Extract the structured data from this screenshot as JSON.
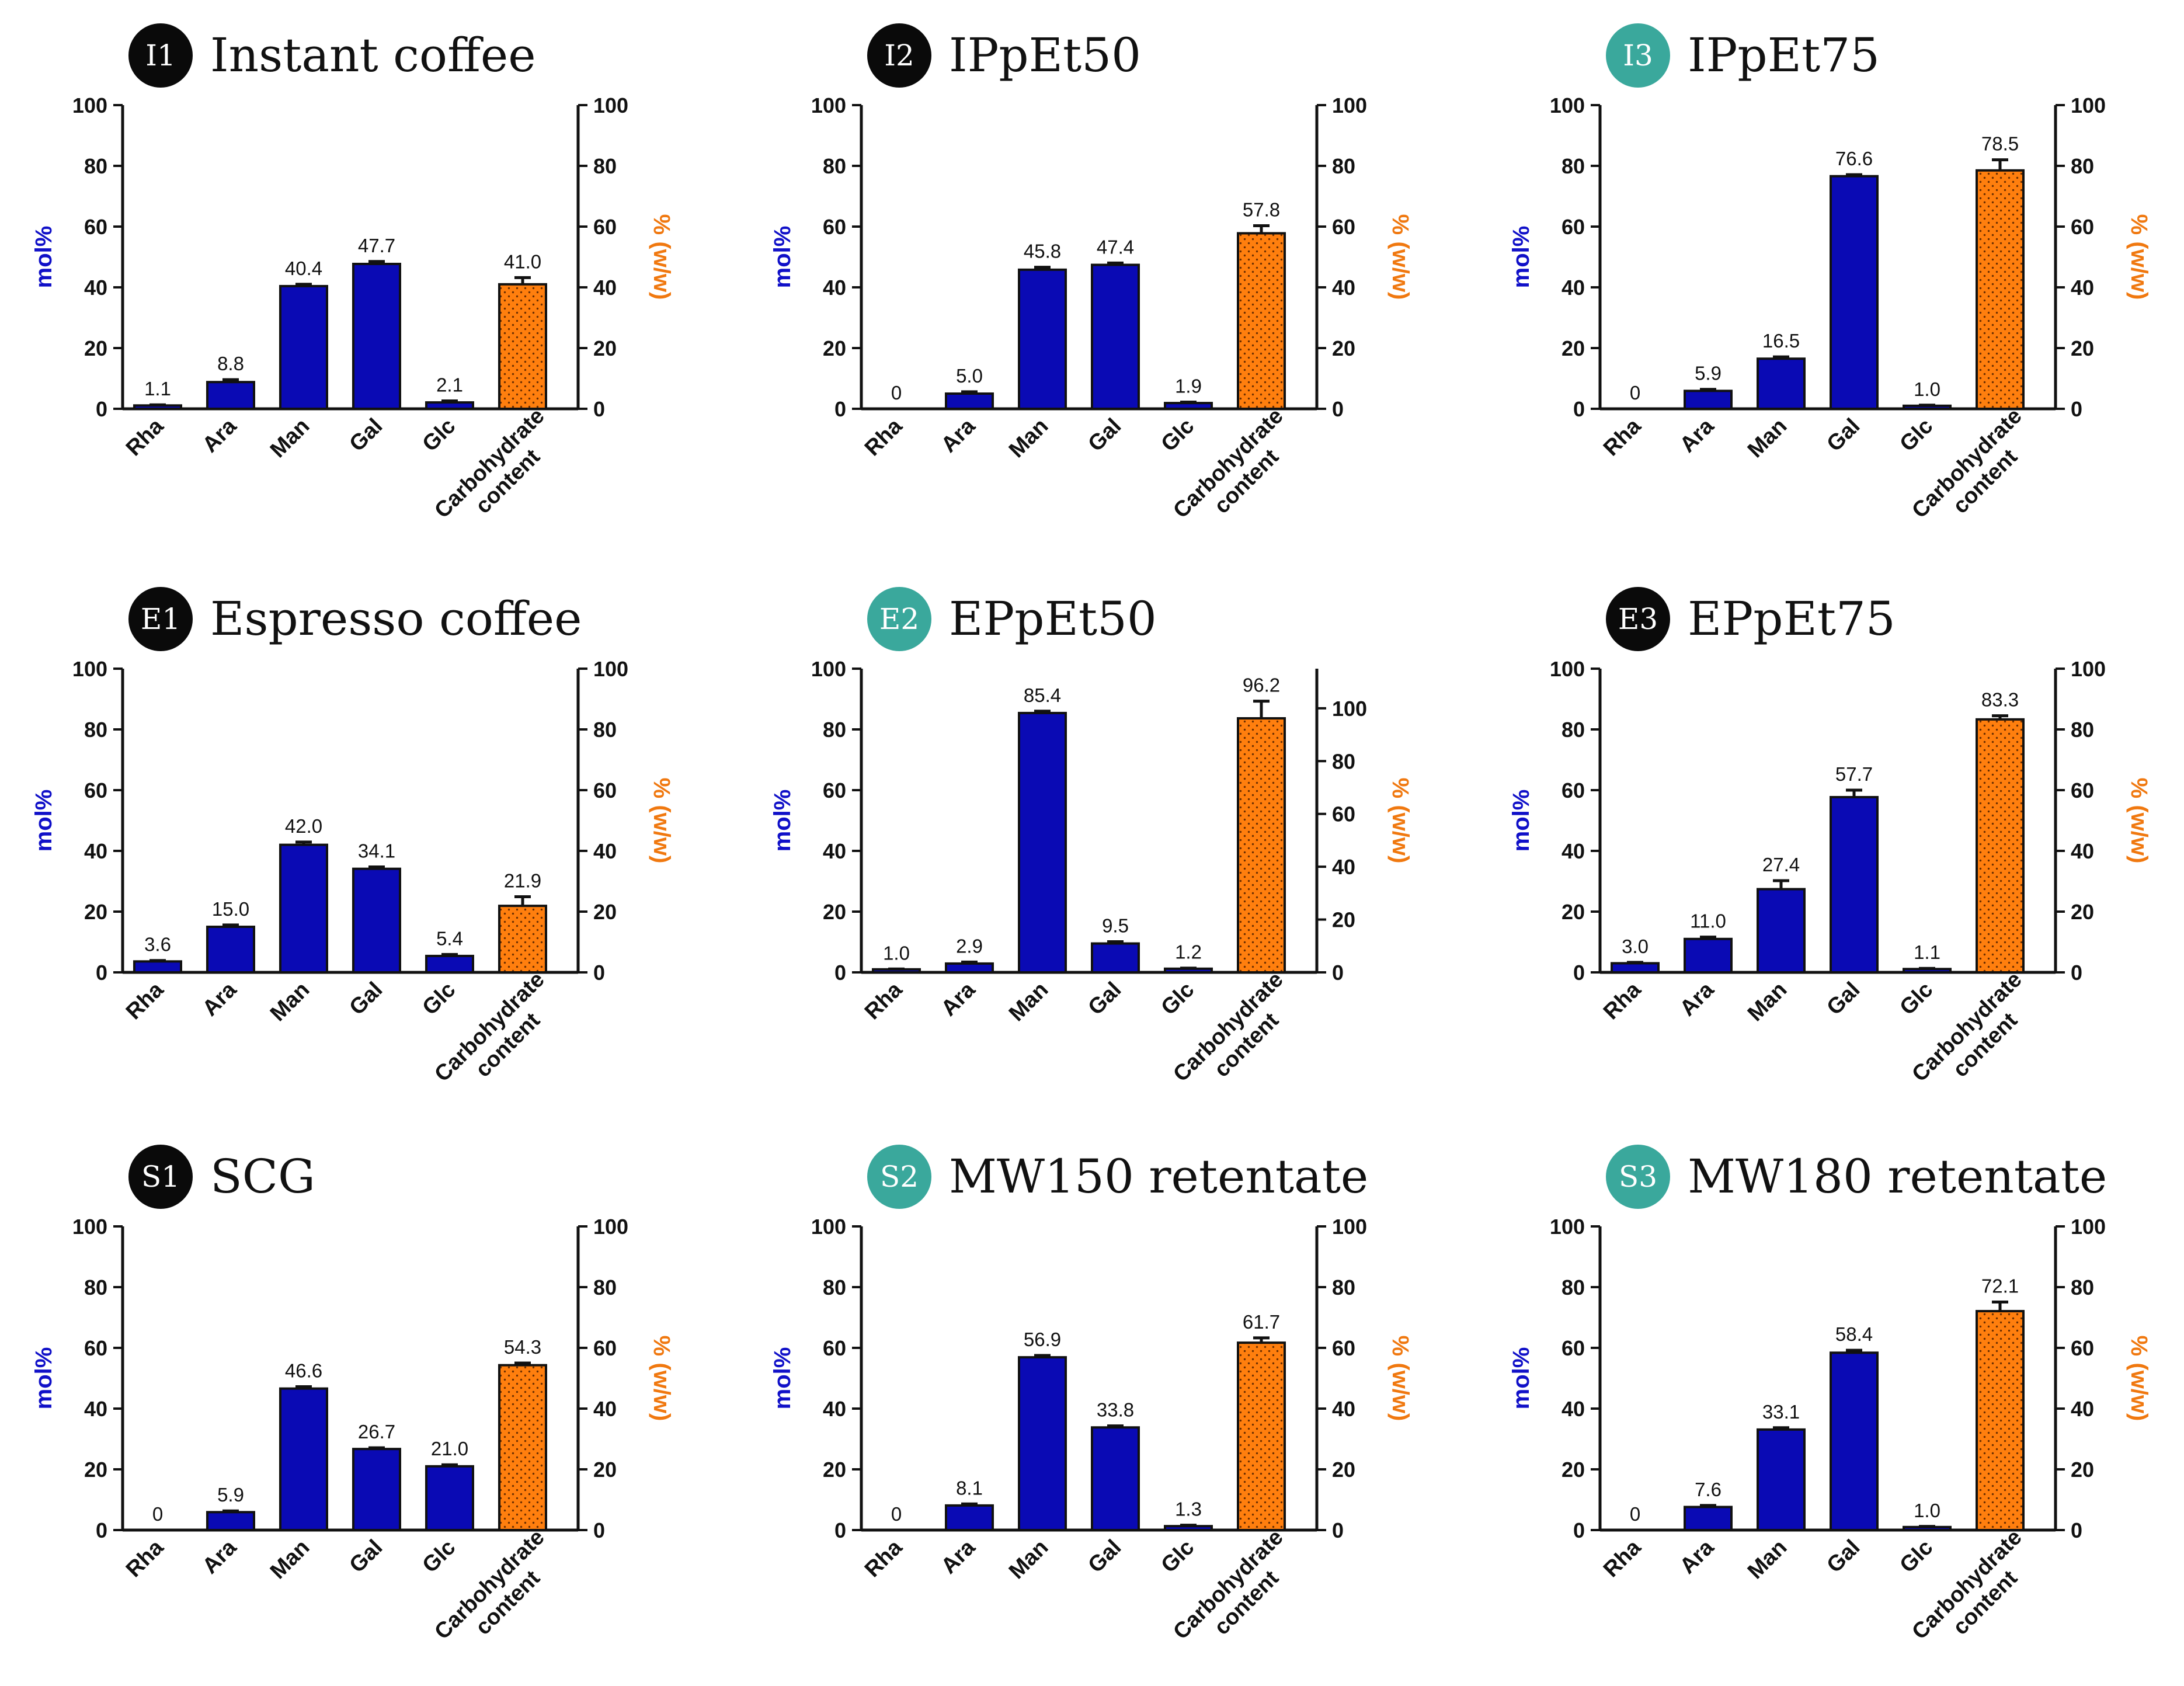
{
  "colors": {
    "mol_bar": "#0a0ab4",
    "carb_bar": "#ff7f0e",
    "badge_black": "#0a0a0a",
    "badge_teal": "#3aa89c",
    "left_axis_label": "#1010c8",
    "right_axis_label": "#f0780f"
  },
  "chart_data": [
    {
      "type": "bar",
      "badge": "I1",
      "badge_style": "black",
      "title": "Instant coffee",
      "ylabel": "mol%",
      "ylabel_right": "% (w/w)",
      "ylim": [
        0,
        100
      ],
      "ylim_right": [
        0,
        100
      ],
      "yticks": [
        0,
        20,
        40,
        60,
        80,
        100
      ],
      "yticks_right": [
        0,
        20,
        40,
        60,
        80,
        100
      ],
      "categories": [
        "Rha",
        "Ara",
        "Man",
        "Gal",
        "Glc",
        "Carbohydrate content"
      ],
      "values": [
        1.1,
        8.8,
        40.4,
        47.7,
        2.1,
        41.0
      ],
      "labels": [
        "1.1",
        "8.8",
        "40.4",
        "47.7",
        "2.1",
        "41.0"
      ],
      "errors": [
        0.2,
        0.8,
        0.6,
        0.8,
        0.5,
        2.2
      ],
      "series_axis": [
        "left",
        "left",
        "left",
        "left",
        "left",
        "right"
      ]
    },
    {
      "type": "bar",
      "badge": "I2",
      "badge_style": "black",
      "title": "IPpEt50",
      "ylabel": "mol%",
      "ylabel_right": "% (w/w)",
      "ylim": [
        0,
        100
      ],
      "ylim_right": [
        0,
        100
      ],
      "yticks": [
        0,
        20,
        40,
        60,
        80,
        100
      ],
      "yticks_right": [
        0,
        20,
        40,
        60,
        80,
        100
      ],
      "categories": [
        "Rha",
        "Ara",
        "Man",
        "Gal",
        "Glc",
        "Carbohydrate content"
      ],
      "values": [
        0,
        5.0,
        45.8,
        47.4,
        1.9,
        57.8
      ],
      "labels": [
        "0",
        "5.0",
        "45.8",
        "47.4",
        "1.9",
        "57.8"
      ],
      "errors": [
        0,
        0.6,
        0.8,
        0.6,
        0.3,
        2.5
      ],
      "series_axis": [
        "left",
        "left",
        "left",
        "left",
        "left",
        "right"
      ]
    },
    {
      "type": "bar",
      "badge": "I3",
      "badge_style": "teal",
      "title": "IPpEt75",
      "ylabel": "mol%",
      "ylabel_right": "% (w/w)",
      "ylim": [
        0,
        100
      ],
      "ylim_right": [
        0,
        100
      ],
      "yticks": [
        0,
        20,
        40,
        60,
        80,
        100
      ],
      "yticks_right": [
        0,
        20,
        40,
        60,
        80,
        100
      ],
      "categories": [
        "Rha",
        "Ara",
        "Man",
        "Gal",
        "Glc",
        "Carbohydrate content"
      ],
      "values": [
        0,
        5.9,
        16.5,
        76.6,
        1.0,
        78.5
      ],
      "labels": [
        "0",
        "5.9",
        "16.5",
        "76.6",
        "1.0",
        "78.5"
      ],
      "errors": [
        0,
        0.5,
        0.6,
        0.5,
        0.2,
        3.5
      ],
      "series_axis": [
        "left",
        "left",
        "left",
        "left",
        "left",
        "right"
      ]
    },
    {
      "type": "bar",
      "badge": "E1",
      "badge_style": "black",
      "title": "Espresso coffee",
      "ylabel": "mol%",
      "ylabel_right": "% (w/w)",
      "ylim": [
        0,
        100
      ],
      "ylim_right": [
        0,
        100
      ],
      "yticks": [
        0,
        20,
        40,
        60,
        80,
        100
      ],
      "yticks_right": [
        0,
        20,
        40,
        60,
        80,
        100
      ],
      "categories": [
        "Rha",
        "Ara",
        "Man",
        "Gal",
        "Glc",
        "Carbohydrate content"
      ],
      "values": [
        3.6,
        15.0,
        42.0,
        34.1,
        5.4,
        21.9
      ],
      "labels": [
        "3.6",
        "15.0",
        "42.0",
        "34.1",
        "5.4",
        "21.9"
      ],
      "errors": [
        0.3,
        0.6,
        0.9,
        0.6,
        0.5,
        3.0
      ],
      "series_axis": [
        "left",
        "left",
        "left",
        "left",
        "left",
        "right"
      ]
    },
    {
      "type": "bar",
      "badge": "E2",
      "badge_style": "teal",
      "title": "EPpEt50",
      "ylabel": "mol%",
      "ylabel_right": "% (w/w)",
      "ylim": [
        0,
        100
      ],
      "ylim_right": [
        0,
        115
      ],
      "yticks": [
        0,
        20,
        40,
        60,
        80,
        100
      ],
      "yticks_right": [
        0,
        20,
        40,
        60,
        80,
        100
      ],
      "categories": [
        "Rha",
        "Ara",
        "Man",
        "Gal",
        "Glc",
        "Carbohydrate content"
      ],
      "values": [
        1.0,
        2.9,
        85.4,
        9.5,
        1.2,
        96.2
      ],
      "labels": [
        "1.0",
        "2.9",
        "85.4",
        "9.5",
        "1.2",
        "96.2"
      ],
      "errors": [
        0.1,
        0.5,
        0.6,
        0.6,
        0.2,
        6.5
      ],
      "series_axis": [
        "left",
        "left",
        "left",
        "left",
        "left",
        "right"
      ]
    },
    {
      "type": "bar",
      "badge": "E3",
      "badge_style": "black",
      "title": "EPpEt75",
      "ylabel": "mol%",
      "ylabel_right": "% (w/w)",
      "ylim": [
        0,
        100
      ],
      "ylim_right": [
        0,
        100
      ],
      "yticks": [
        0,
        20,
        40,
        60,
        80,
        100
      ],
      "yticks_right": [
        0,
        20,
        40,
        60,
        80,
        100
      ],
      "categories": [
        "Rha",
        "Ara",
        "Man",
        "Gal",
        "Glc",
        "Carbohydrate content"
      ],
      "values": [
        3.0,
        11.0,
        27.4,
        57.7,
        1.1,
        83.3
      ],
      "labels": [
        "3.0",
        "11.0",
        "27.4",
        "57.7",
        "1.1",
        "83.3"
      ],
      "errors": [
        0.3,
        0.6,
        2.8,
        2.3,
        0.2,
        1.2
      ],
      "series_axis": [
        "left",
        "left",
        "left",
        "left",
        "left",
        "right"
      ]
    },
    {
      "type": "bar",
      "badge": "S1",
      "badge_style": "black",
      "title": "SCG",
      "ylabel": "mol%",
      "ylabel_right": "% (w/w)",
      "ylim": [
        0,
        100
      ],
      "ylim_right": [
        0,
        100
      ],
      "yticks": [
        0,
        20,
        40,
        60,
        80,
        100
      ],
      "yticks_right": [
        0,
        20,
        40,
        60,
        80,
        100
      ],
      "categories": [
        "Rha",
        "Ara",
        "Man",
        "Gal",
        "Glc",
        "Carbohydrate content"
      ],
      "values": [
        0,
        5.9,
        46.6,
        26.7,
        21.0,
        54.3
      ],
      "labels": [
        "0",
        "5.9",
        "46.6",
        "26.7",
        "21.0",
        "54.3"
      ],
      "errors": [
        0,
        0.4,
        0.6,
        0.4,
        0.5,
        0.7
      ],
      "series_axis": [
        "left",
        "left",
        "left",
        "left",
        "left",
        "right"
      ]
    },
    {
      "type": "bar",
      "badge": "S2",
      "badge_style": "teal",
      "title": "MW150 retentate",
      "ylabel": "mol%",
      "ylabel_right": "% (w/w)",
      "ylim": [
        0,
        100
      ],
      "ylim_right": [
        0,
        100
      ],
      "yticks": [
        0,
        20,
        40,
        60,
        80,
        100
      ],
      "yticks_right": [
        0,
        20,
        40,
        60,
        80,
        100
      ],
      "categories": [
        "Rha",
        "Ara",
        "Man",
        "Gal",
        "Glc",
        "Carbohydrate content"
      ],
      "values": [
        0,
        8.1,
        56.9,
        33.8,
        1.3,
        61.7
      ],
      "labels": [
        "0",
        "8.1",
        "56.9",
        "33.8",
        "1.3",
        "61.7"
      ],
      "errors": [
        0,
        0.5,
        0.6,
        0.5,
        0.3,
        1.6
      ],
      "series_axis": [
        "left",
        "left",
        "left",
        "left",
        "left",
        "right"
      ]
    },
    {
      "type": "bar",
      "badge": "S3",
      "badge_style": "teal",
      "title": "MW180 retentate",
      "ylabel": "mol%",
      "ylabel_right": "% (w/w)",
      "ylim": [
        0,
        100
      ],
      "ylim_right": [
        0,
        100
      ],
      "yticks": [
        0,
        20,
        40,
        60,
        80,
        100
      ],
      "yticks_right": [
        0,
        20,
        40,
        60,
        80,
        100
      ],
      "categories": [
        "Rha",
        "Ara",
        "Man",
        "Gal",
        "Glc",
        "Carbohydrate content"
      ],
      "values": [
        0,
        7.6,
        33.1,
        58.4,
        1.0,
        72.1
      ],
      "labels": [
        "0",
        "7.6",
        "33.1",
        "58.4",
        "1.0",
        "72.1"
      ],
      "errors": [
        0,
        0.5,
        0.6,
        0.8,
        0.2,
        3.0
      ],
      "series_axis": [
        "left",
        "left",
        "left",
        "left",
        "left",
        "right"
      ]
    }
  ]
}
